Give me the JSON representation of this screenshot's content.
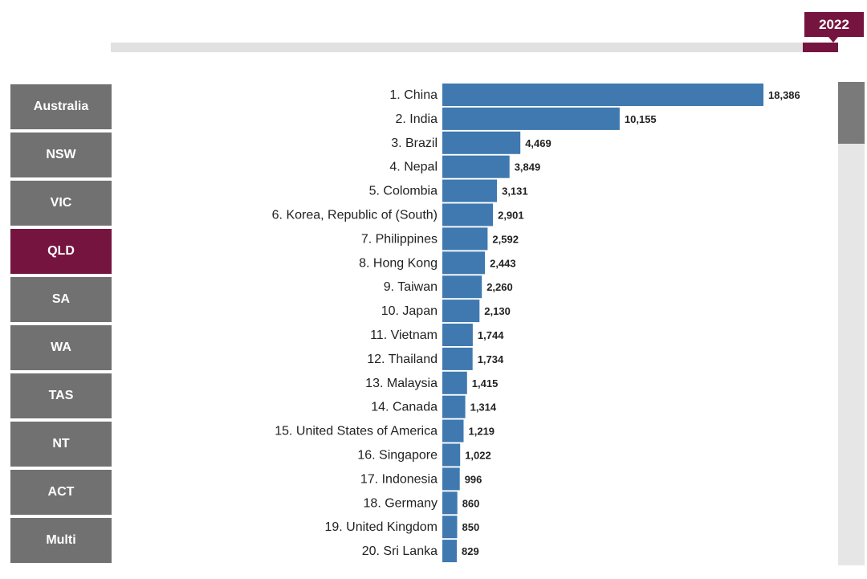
{
  "timeline": {
    "year": "2022"
  },
  "nav": {
    "states": [
      "Australia",
      "NSW",
      "VIC",
      "QLD",
      "SA",
      "WA",
      "TAS",
      "NT",
      "ACT",
      "Multi"
    ],
    "active": "QLD"
  },
  "colors": {
    "bar": "#3f79b0",
    "accent": "#75153f",
    "button": "#717171"
  },
  "chart_data": {
    "type": "bar",
    "orientation": "horizontal",
    "categories": [
      "1. China",
      "2. India",
      "3. Brazil",
      "4. Nepal",
      "5. Colombia",
      "6. Korea, Republic of (South)",
      "7. Philippines",
      "8. Hong Kong",
      "9. Taiwan",
      "10. Japan",
      "11. Vietnam",
      "12. Thailand",
      "13. Malaysia",
      "14. Canada",
      "15. United States of America",
      "16. Singapore",
      "17. Indonesia",
      "18. Germany",
      "19. United Kingdom",
      "20. Sri Lanka"
    ],
    "values": [
      18386,
      10155,
      4469,
      3849,
      3131,
      2901,
      2592,
      2443,
      2260,
      2130,
      1744,
      1734,
      1415,
      1314,
      1219,
      1022,
      996,
      860,
      850,
      829
    ],
    "value_labels": [
      "18,386",
      "10,155",
      "4,469",
      "3,849",
      "3,131",
      "2,901",
      "2,592",
      "2,443",
      "2,260",
      "2,130",
      "1,744",
      "1,734",
      "1,415",
      "1,314",
      "1,219",
      "1,022",
      "996",
      "860",
      "850",
      "829"
    ],
    "grid": false,
    "legend": "none"
  }
}
